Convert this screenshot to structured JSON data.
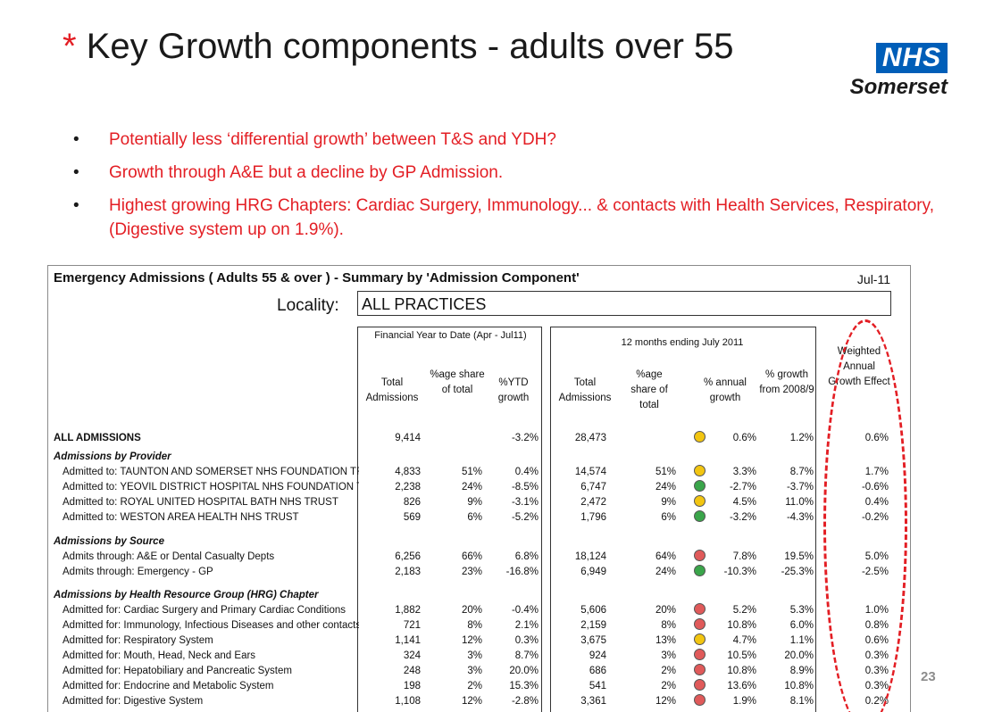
{
  "slide": {
    "title_star": "*",
    "title_text": " Key Growth components - adults over 55",
    "logo_nhs": "NHS",
    "logo_org": "Somerset",
    "bullets": [
      "Potentially less ‘differential growth’ between T&S and YDH?",
      "Growth through A&E but a decline by GP Admission.",
      "Highest growing HRG Chapters: Cardiac Surgery, Immunology... & contacts with Health Services, Respiratory, (Digestive system up on 1.9%)."
    ],
    "page_number": "23"
  },
  "sheet": {
    "title": "Emergency Admissions ( Adults 55 & over ) - Summary by 'Admission Component'",
    "date": "Jul-11",
    "locality_label": "Locality:",
    "locality_value": "ALL PRACTICES",
    "group1_header": "Financial Year to Date (Apr - Jul11)",
    "group2_header": "12 months ending July 2011",
    "weighted_header": "Weighted Annual Growth Effect",
    "col_headers": {
      "fy_total": "Total Admissions",
      "fy_share": "%age share of total",
      "fy_growth": "%YTD growth",
      "m12_total": "Total Admissions",
      "m12_share": "%age share of total",
      "m12_annual": "% annual growth",
      "m12_since": "% growth from 2008/9"
    },
    "status_colors": {
      "amber": "#f2c511",
      "green": "#3aa54a",
      "red": "#e05a5a"
    },
    "rows": [
      {
        "label": "ALL ADMISSIONS",
        "style": "bold",
        "fy_total": "9,414",
        "fy_share": "",
        "fy_growth": "-3.2%",
        "m12_total": "28,473",
        "m12_share": "",
        "status": "amber",
        "annual": "0.6%",
        "since": "1.2%",
        "weighted": "0.6%"
      },
      {
        "label": "Admissions by Provider",
        "style": "section"
      },
      {
        "label": "Admitted to: TAUNTON AND SOMERSET NHS FOUNDATION TRUST",
        "style": "indent",
        "fy_total": "4,833",
        "fy_share": "51%",
        "fy_growth": "0.4%",
        "m12_total": "14,574",
        "m12_share": "51%",
        "status": "amber",
        "annual": "3.3%",
        "since": "8.7%",
        "weighted": "1.7%"
      },
      {
        "label": "Admitted to: YEOVIL DISTRICT HOSPITAL NHS FOUNDATION TRUST",
        "style": "indent",
        "fy_total": "2,238",
        "fy_share": "24%",
        "fy_growth": "-8.5%",
        "m12_total": "6,747",
        "m12_share": "24%",
        "status": "green",
        "annual": "-2.7%",
        "since": "-3.7%",
        "weighted": "-0.6%"
      },
      {
        "label": "Admitted to: ROYAL UNITED HOSPITAL BATH NHS TRUST",
        "style": "indent",
        "fy_total": "826",
        "fy_share": "9%",
        "fy_growth": "-3.1%",
        "m12_total": "2,472",
        "m12_share": "9%",
        "status": "amber",
        "annual": "4.5%",
        "since": "11.0%",
        "weighted": "0.4%"
      },
      {
        "label": "Admitted to: WESTON AREA HEALTH NHS TRUST",
        "style": "indent",
        "fy_total": "569",
        "fy_share": "6%",
        "fy_growth": "-5.2%",
        "m12_total": "1,796",
        "m12_share": "6%",
        "status": "green",
        "annual": "-3.2%",
        "since": "-4.3%",
        "weighted": "-0.2%"
      },
      {
        "label": "Admissions by Source",
        "style": "section"
      },
      {
        "label": "Admits through: A&E or Dental Casualty Depts",
        "style": "indent",
        "fy_total": "6,256",
        "fy_share": "66%",
        "fy_growth": "6.8%",
        "m12_total": "18,124",
        "m12_share": "64%",
        "status": "red",
        "annual": "7.8%",
        "since": "19.5%",
        "weighted": "5.0%"
      },
      {
        "label": "Admits through: Emergency - GP",
        "style": "indent",
        "fy_total": "2,183",
        "fy_share": "23%",
        "fy_growth": "-16.8%",
        "m12_total": "6,949",
        "m12_share": "24%",
        "status": "green",
        "annual": "-10.3%",
        "since": "-25.3%",
        "weighted": "-2.5%"
      },
      {
        "label": "Admissions by Health Resource Group (HRG) Chapter",
        "style": "section"
      },
      {
        "label": "Admitted for: Cardiac Surgery and Primary Cardiac Conditions",
        "style": "indent",
        "fy_total": "1,882",
        "fy_share": "20%",
        "fy_growth": "-0.4%",
        "m12_total": "5,606",
        "m12_share": "20%",
        "status": "red",
        "annual": "5.2%",
        "since": "5.3%",
        "weighted": "1.0%"
      },
      {
        "label": "Admitted for: Immunology, Infectious Diseases and other contacts",
        "style": "indent",
        "fy_total": "721",
        "fy_share": "8%",
        "fy_growth": "2.1%",
        "m12_total": "2,159",
        "m12_share": "8%",
        "status": "red",
        "annual": "10.8%",
        "since": "6.0%",
        "weighted": "0.8%"
      },
      {
        "label": "Admitted for: Respiratory System",
        "style": "indent",
        "fy_total": "1,141",
        "fy_share": "12%",
        "fy_growth": "0.3%",
        "m12_total": "3,675",
        "m12_share": "13%",
        "status": "amber",
        "annual": "4.7%",
        "since": "1.1%",
        "weighted": "0.6%"
      },
      {
        "label": "Admitted for: Mouth, Head, Neck and Ears",
        "style": "indent",
        "fy_total": "324",
        "fy_share": "3%",
        "fy_growth": "8.7%",
        "m12_total": "924",
        "m12_share": "3%",
        "status": "red",
        "annual": "10.5%",
        "since": "20.0%",
        "weighted": "0.3%"
      },
      {
        "label": "Admitted for: Hepatobiliary and Pancreatic System",
        "style": "indent",
        "fy_total": "248",
        "fy_share": "3%",
        "fy_growth": "20.0%",
        "m12_total": "686",
        "m12_share": "2%",
        "status": "red",
        "annual": "10.8%",
        "since": "8.9%",
        "weighted": "0.3%"
      },
      {
        "label": "Admitted for: Endocrine and Metabolic System",
        "style": "indent",
        "fy_total": "198",
        "fy_share": "2%",
        "fy_growth": "15.3%",
        "m12_total": "541",
        "m12_share": "2%",
        "status": "red",
        "annual": "13.6%",
        "since": "10.8%",
        "weighted": "0.3%"
      },
      {
        "label": "Admitted for: Digestive System",
        "style": "indent",
        "fy_total": "1,108",
        "fy_share": "12%",
        "fy_growth": "-2.8%",
        "m12_total": "3,361",
        "m12_share": "12%",
        "status": "red",
        "annual": "1.9%",
        "since": "8.1%",
        "weighted": "0.2%"
      }
    ]
  }
}
